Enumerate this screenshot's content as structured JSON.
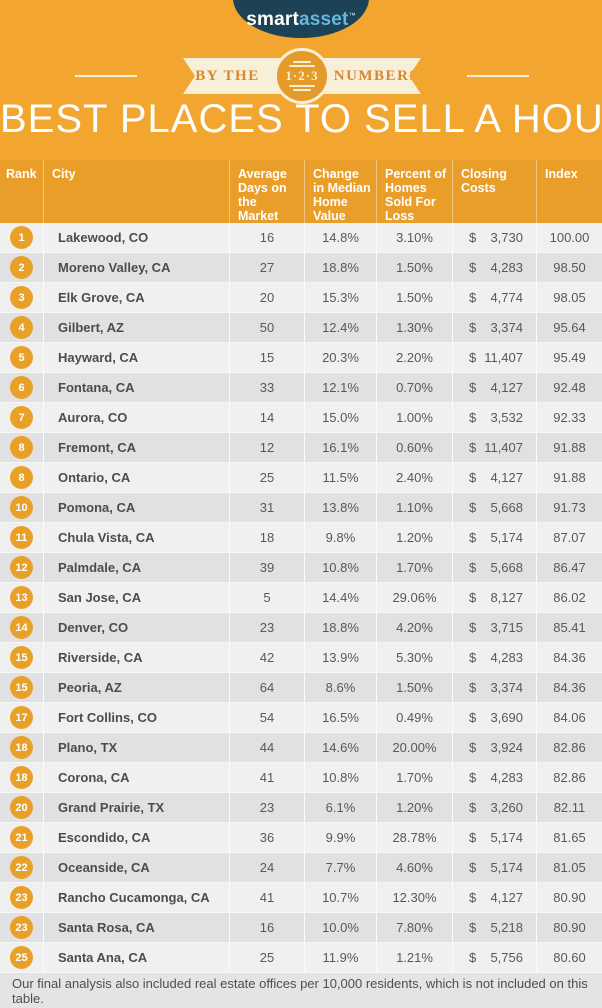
{
  "logo": {
    "brand_smart": "smart",
    "brand_asset": "asset",
    "trademark": "™"
  },
  "banner": {
    "left_label": "BY THE",
    "right_label": "NUMBERS",
    "circle_label": "1·2·3"
  },
  "title": "BEST PLACES TO SELL A HOUSE",
  "chart_data": {
    "type": "table",
    "title": "Best Places to Sell a House",
    "currency": "$",
    "columns": [
      "Rank",
      "City",
      "Average Days on the Market",
      "Change in Median Home Value",
      "Percent of Homes Sold For Loss",
      "Closing Costs",
      "Index"
    ],
    "rows": [
      {
        "rank": "1",
        "city": "Lakewood, CO",
        "days": "16",
        "change": "14.8%",
        "loss": "3.10%",
        "closing": "3,730",
        "index": "100.00"
      },
      {
        "rank": "2",
        "city": "Moreno Valley, CA",
        "days": "27",
        "change": "18.8%",
        "loss": "1.50%",
        "closing": "4,283",
        "index": "98.50"
      },
      {
        "rank": "3",
        "city": "Elk Grove, CA",
        "days": "20",
        "change": "15.3%",
        "loss": "1.50%",
        "closing": "4,774",
        "index": "98.05"
      },
      {
        "rank": "4",
        "city": "Gilbert, AZ",
        "days": "50",
        "change": "12.4%",
        "loss": "1.30%",
        "closing": "3,374",
        "index": "95.64"
      },
      {
        "rank": "5",
        "city": "Hayward, CA",
        "days": "15",
        "change": "20.3%",
        "loss": "2.20%",
        "closing": "11,407",
        "index": "95.49"
      },
      {
        "rank": "6",
        "city": "Fontana, CA",
        "days": "33",
        "change": "12.1%",
        "loss": "0.70%",
        "closing": "4,127",
        "index": "92.48"
      },
      {
        "rank": "7",
        "city": "Aurora, CO",
        "days": "14",
        "change": "15.0%",
        "loss": "1.00%",
        "closing": "3,532",
        "index": "92.33"
      },
      {
        "rank": "8",
        "city": "Fremont, CA",
        "days": "12",
        "change": "16.1%",
        "loss": "0.60%",
        "closing": "11,407",
        "index": "91.88"
      },
      {
        "rank": "8",
        "city": "Ontario, CA",
        "days": "25",
        "change": "11.5%",
        "loss": "2.40%",
        "closing": "4,127",
        "index": "91.88"
      },
      {
        "rank": "10",
        "city": "Pomona, CA",
        "days": "31",
        "change": "13.8%",
        "loss": "1.10%",
        "closing": "5,668",
        "index": "91.73"
      },
      {
        "rank": "11",
        "city": "Chula Vista, CA",
        "days": "18",
        "change": "9.8%",
        "loss": "1.20%",
        "closing": "5,174",
        "index": "87.07"
      },
      {
        "rank": "12",
        "city": "Palmdale, CA",
        "days": "39",
        "change": "10.8%",
        "loss": "1.70%",
        "closing": "5,668",
        "index": "86.47"
      },
      {
        "rank": "13",
        "city": "San Jose, CA",
        "days": "5",
        "change": "14.4%",
        "loss": "29.06%",
        "closing": "8,127",
        "index": "86.02"
      },
      {
        "rank": "14",
        "city": "Denver, CO",
        "days": "23",
        "change": "18.8%",
        "loss": "4.20%",
        "closing": "3,715",
        "index": "85.41"
      },
      {
        "rank": "15",
        "city": "Riverside, CA",
        "days": "42",
        "change": "13.9%",
        "loss": "5.30%",
        "closing": "4,283",
        "index": "84.36"
      },
      {
        "rank": "15",
        "city": "Peoria, AZ",
        "days": "64",
        "change": "8.6%",
        "loss": "1.50%",
        "closing": "3,374",
        "index": "84.36"
      },
      {
        "rank": "17",
        "city": "Fort Collins, CO",
        "days": "54",
        "change": "16.5%",
        "loss": "0.49%",
        "closing": "3,690",
        "index": "84.06"
      },
      {
        "rank": "18",
        "city": "Plano, TX",
        "days": "44",
        "change": "14.6%",
        "loss": "20.00%",
        "closing": "3,924",
        "index": "82.86"
      },
      {
        "rank": "18",
        "city": "Corona, CA",
        "days": "41",
        "change": "10.8%",
        "loss": "1.70%",
        "closing": "4,283",
        "index": "82.86"
      },
      {
        "rank": "20",
        "city": "Grand Prairie, TX",
        "days": "23",
        "change": "6.1%",
        "loss": "1.20%",
        "closing": "3,260",
        "index": "82.11"
      },
      {
        "rank": "21",
        "city": "Escondido, CA",
        "days": "36",
        "change": "9.9%",
        "loss": "28.78%",
        "closing": "5,174",
        "index": "81.65"
      },
      {
        "rank": "22",
        "city": "Oceanside, CA",
        "days": "24",
        "change": "7.7%",
        "loss": "4.60%",
        "closing": "5,174",
        "index": "81.05"
      },
      {
        "rank": "23",
        "city": "Rancho Cucamonga, CA",
        "days": "41",
        "change": "10.7%",
        "loss": "12.30%",
        "closing": "4,127",
        "index": "80.90"
      },
      {
        "rank": "23",
        "city": "Santa Rosa, CA",
        "days": "16",
        "change": "10.0%",
        "loss": "7.80%",
        "closing": "5,218",
        "index": "80.90"
      },
      {
        "rank": "25",
        "city": "Santa Ana, CA",
        "days": "25",
        "change": "11.9%",
        "loss": "1.21%",
        "closing": "5,756",
        "index": "80.60"
      }
    ]
  },
  "footnote": "Our final analysis also included real estate offices per 10,000 residents, which is not included on this table.",
  "colors": {
    "background_gold": "#F2A62F",
    "header_orange": "#E89E28",
    "badge_orange": "#E8A126",
    "navy": "#1D4255",
    "logo_blue": "#66B7DC",
    "cream": "#F8EFD9",
    "banner_text_orange": "#D8862F",
    "row_light": "#F0F0F1",
    "row_dark": "#E1E1E3",
    "footer_gray": "#E4E4E6"
  }
}
